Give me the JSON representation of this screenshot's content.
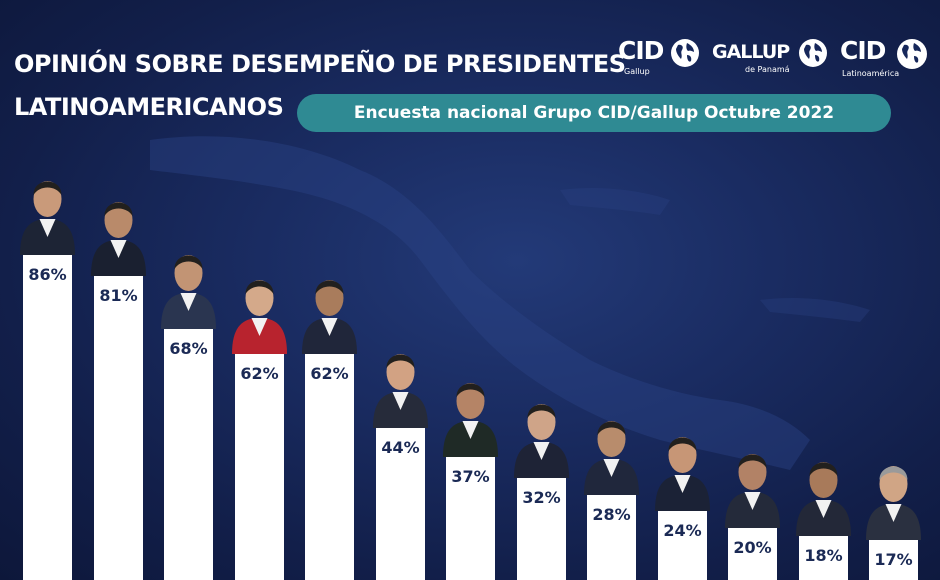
{
  "title": {
    "line1": "OPINIÓN SOBRE DESEMPEÑO DE PRESIDENTES",
    "line2": "LATINOAMERICANOS"
  },
  "subtitle": "Encuesta nacional Grupo CID/Gallup Octubre 2022",
  "logos": [
    {
      "name": "CID",
      "tagline": "Gallup"
    },
    {
      "name": "GALLUP",
      "tagline": "de Panamá"
    },
    {
      "name": "CID",
      "tagline": "Latinoamérica"
    }
  ],
  "colors": {
    "background": "#16275a",
    "bar": "#ffffff",
    "value_text": "#1b2a55",
    "pill": "#2f8a93"
  },
  "chart_data": {
    "type": "bar",
    "title": "OPINIÓN SOBRE DESEMPEÑO DE PRESIDENTES LATINOAMERICANOS",
    "subtitle": "Encuesta nacional Grupo CID/Gallup Octubre 2022",
    "categories": [
      "",
      "",
      "",
      "",
      "",
      "",
      "",
      "",
      "",
      "",
      "",
      "",
      ""
    ],
    "values": [
      86,
      81,
      68,
      62,
      62,
      44,
      37,
      32,
      28,
      24,
      20,
      18,
      17
    ],
    "value_labels": [
      "86%",
      "81%",
      "68%",
      "62%",
      "62%",
      "44%",
      "37%",
      "32%",
      "28%",
      "24%",
      "20%",
      "18%",
      "17%"
    ],
    "unit": "%",
    "ylim": [
      0,
      100
    ],
    "grid": false,
    "legend": "none"
  }
}
